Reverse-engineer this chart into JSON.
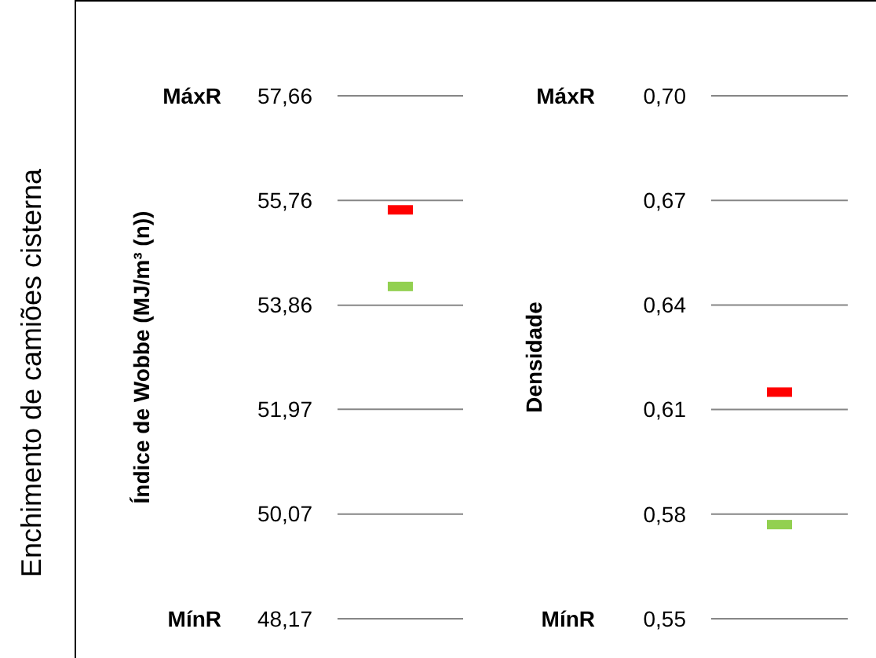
{
  "chart_data": [
    {
      "type": "scatter",
      "ylabel": "Índice de Wobbe (MJ/m³ (n))",
      "annotations": [
        "Enchimento de camiões cisterna",
        "MáxR",
        "MínR"
      ],
      "categories": [
        null
      ],
      "series": [
        {
          "color": "#ff0000",
          "values": [
            55.59
          ]
        },
        {
          "color": "#92d050",
          "values": [
            54.2
          ]
        }
      ],
      "ylim": [
        48.17,
        57.66
      ],
      "yticks": [
        {
          "value": 48.17,
          "label": "48,17"
        },
        {
          "value": 50.07,
          "label": "50,07"
        },
        {
          "value": 51.97,
          "label": "51,97"
        },
        {
          "value": 53.86,
          "label": "53,86"
        },
        {
          "value": 55.76,
          "label": "55,76"
        },
        {
          "value": 57.66,
          "label": "57,66"
        }
      ],
      "grid": "y",
      "tick_labels": "y"
    },
    {
      "type": "scatter",
      "ylabel": "Densidade",
      "annotations": [
        "MáxR",
        "MínR"
      ],
      "categories": [
        null
      ],
      "series": [
        {
          "color": "#ff0000",
          "values": [
            0.615
          ]
        },
        {
          "color": "#92d050",
          "values": [
            0.577
          ]
        }
      ],
      "ylim": [
        0.55,
        0.7
      ],
      "yticks": [
        {
          "value": 0.55,
          "label": "0,55"
        },
        {
          "value": 0.58,
          "label": "0,58"
        },
        {
          "value": 0.61,
          "label": "0,61"
        },
        {
          "value": 0.64,
          "label": "0,64"
        },
        {
          "value": 0.67,
          "label": "0,67"
        },
        {
          "value": 0.7,
          "label": "0,70"
        }
      ],
      "grid": "y",
      "tick_labels": "y"
    }
  ]
}
